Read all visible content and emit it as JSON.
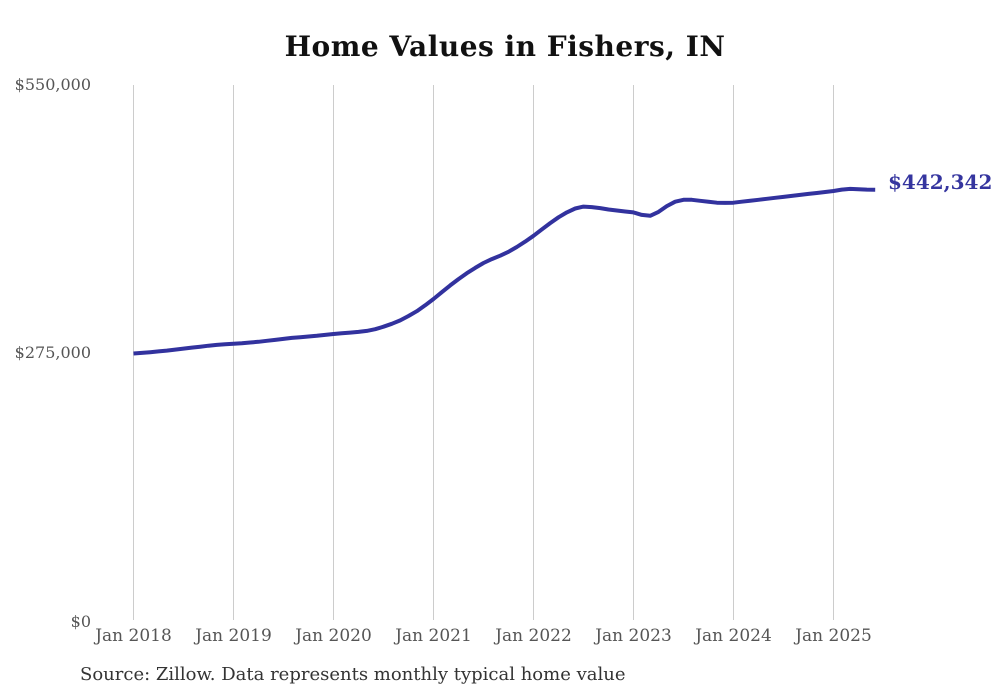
{
  "title": "Home Values in Fishers, IN",
  "source_note": "Source: Zillow. Data represents monthly typical home value",
  "chart_data": {
    "type": "line",
    "title": "Home Values in Fishers, IN",
    "series_name": "Typical home value (Fishers, IN)",
    "unit": "USD",
    "frequency": "monthly",
    "x_ticks": [
      "Jan 2018",
      "Jan 2019",
      "Jan 2020",
      "Jan 2021",
      "Jan 2022",
      "Jan 2023",
      "Jan 2024",
      "Jan 2025"
    ],
    "y_ticks": [
      {
        "label": "$550,000",
        "value": 550000
      },
      {
        "label": "$275,000",
        "value": 275000
      },
      {
        "label": "$0",
        "value": 0
      }
    ],
    "ylim": [
      0,
      550000
    ],
    "grid": "vertical-only",
    "end_label": "$442,342",
    "final_value": 442342,
    "colors": {
      "line": "#32329e",
      "end_label": "#35359f",
      "gridline": "#cccccc",
      "tick_text": "#555555",
      "title_text": "#111111"
    },
    "months": [
      "2018-01",
      "2018-02",
      "2018-03",
      "2018-04",
      "2018-05",
      "2018-06",
      "2018-07",
      "2018-08",
      "2018-09",
      "2018-10",
      "2018-11",
      "2018-12",
      "2019-01",
      "2019-02",
      "2019-03",
      "2019-04",
      "2019-05",
      "2019-06",
      "2019-07",
      "2019-08",
      "2019-09",
      "2019-10",
      "2019-11",
      "2019-12",
      "2020-01",
      "2020-02",
      "2020-03",
      "2020-04",
      "2020-05",
      "2020-06",
      "2020-07",
      "2020-08",
      "2020-09",
      "2020-10",
      "2020-11",
      "2020-12",
      "2021-01",
      "2021-02",
      "2021-03",
      "2021-04",
      "2021-05",
      "2021-06",
      "2021-07",
      "2021-08",
      "2021-09",
      "2021-10",
      "2021-11",
      "2021-12",
      "2022-01",
      "2022-02",
      "2022-03",
      "2022-04",
      "2022-05",
      "2022-06",
      "2022-07",
      "2022-08",
      "2022-09",
      "2022-10",
      "2022-11",
      "2022-12",
      "2023-01",
      "2023-02",
      "2023-03",
      "2023-04",
      "2023-05",
      "2023-06",
      "2023-07",
      "2023-08",
      "2023-09",
      "2023-10",
      "2023-11",
      "2023-12",
      "2024-01",
      "2024-02",
      "2024-03",
      "2024-04",
      "2024-05",
      "2024-06",
      "2024-07",
      "2024-08",
      "2024-09",
      "2024-10",
      "2024-11",
      "2024-12",
      "2025-01",
      "2025-02",
      "2025-03",
      "2025-04",
      "2025-05",
      "2025-06"
    ],
    "values": [
      274000,
      274600,
      275300,
      276100,
      277000,
      278000,
      279000,
      280000,
      281000,
      282000,
      282800,
      283400,
      284000,
      284600,
      285300,
      286000,
      287000,
      288000,
      289000,
      290000,
      290700,
      291400,
      292200,
      293100,
      294000,
      294800,
      295500,
      296200,
      297200,
      299000,
      301500,
      304500,
      308000,
      312500,
      317500,
      323500,
      330000,
      337000,
      344000,
      350500,
      356500,
      362000,
      367000,
      371000,
      374500,
      378500,
      383500,
      389000,
      395000,
      401500,
      408000,
      414000,
      419000,
      423000,
      425000,
      424500,
      423500,
      422000,
      421000,
      420000,
      419000,
      416500,
      415500,
      419500,
      425500,
      430000,
      432000,
      432000,
      431000,
      430000,
      429000,
      428800,
      429000,
      430000,
      431000,
      432000,
      433000,
      434000,
      435000,
      436000,
      437000,
      438000,
      439000,
      440000,
      441000,
      442500,
      443200,
      442800,
      442500,
      442342
    ]
  }
}
